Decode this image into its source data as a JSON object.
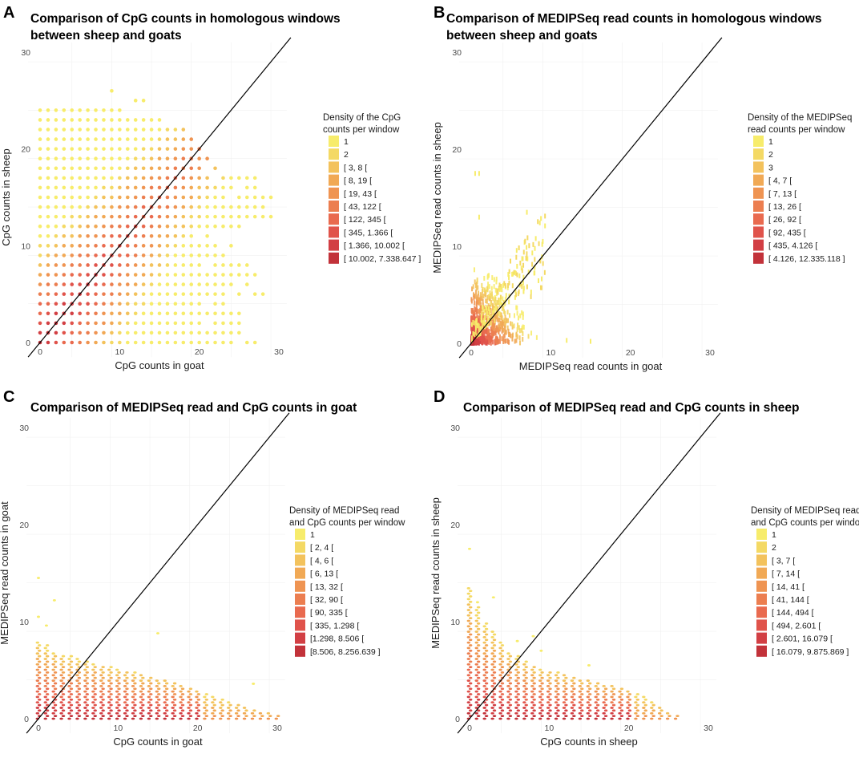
{
  "figure": "four-panel density scatter comparison",
  "chart_data": [
    {
      "panel": "A",
      "type": "scatter",
      "title": "Comparison of CpG counts in homologous windows between sheep and goats",
      "title_lines": [
        "Comparison of CpG counts in homologous windows",
        "between sheep and goats"
      ],
      "xlabel": "CpG counts in goat",
      "ylabel": "CpG counts in sheep",
      "xlim": [
        -1,
        31
      ],
      "ylim": [
        -1,
        31
      ],
      "xticks": [
        0,
        10,
        20,
        30
      ],
      "yticks": [
        0,
        10,
        20,
        30
      ],
      "reference_line": "y = x",
      "shape": "dots",
      "legend_title_lines": [
        "Density of the CpG",
        "counts per window"
      ],
      "legend": [
        "1",
        "2",
        "[ 3, 8 [",
        "[ 8, 19 [",
        "[ 19, 43 [",
        "[ 43, 122 [",
        "[ 122, 345 [",
        "[ 345, 1.366 [",
        "[ 1.366, 10.002 [",
        "[ 10.002, 7.338.647 ]"
      ],
      "max_x_by_y": [
        [
          0,
          27
        ],
        [
          1,
          25
        ],
        [
          2,
          25
        ],
        [
          3,
          26
        ],
        [
          4,
          23
        ],
        [
          5,
          28
        ],
        [
          6,
          26
        ],
        [
          7,
          27
        ],
        [
          8,
          26
        ],
        [
          9,
          23
        ],
        [
          10,
          24
        ],
        [
          11,
          22
        ],
        [
          12,
          25
        ],
        [
          13,
          30
        ],
        [
          14,
          28
        ],
        [
          15,
          29
        ],
        [
          16,
          27
        ],
        [
          17,
          27
        ],
        [
          18,
          22
        ],
        [
          19,
          21
        ],
        [
          20,
          20
        ],
        [
          21,
          19
        ],
        [
          22,
          18
        ],
        [
          23,
          15
        ],
        [
          24,
          10
        ],
        [
          25,
          13
        ],
        [
          26,
          9
        ]
      ],
      "min_x_by_y": [
        [
          0,
          0
        ],
        [
          1,
          0
        ],
        [
          2,
          0
        ],
        [
          3,
          0
        ],
        [
          4,
          0
        ],
        [
          5,
          0
        ],
        [
          6,
          0
        ],
        [
          7,
          0
        ],
        [
          8,
          0
        ],
        [
          9,
          0
        ],
        [
          10,
          0
        ],
        [
          11,
          0
        ],
        [
          12,
          0
        ],
        [
          13,
          0
        ],
        [
          14,
          0
        ],
        [
          15,
          0
        ],
        [
          16,
          0
        ],
        [
          17,
          0
        ],
        [
          18,
          0
        ],
        [
          19,
          0
        ],
        [
          20,
          0
        ],
        [
          21,
          0
        ],
        [
          22,
          0
        ],
        [
          23,
          0
        ],
        [
          24,
          0
        ],
        [
          25,
          12
        ],
        [
          26,
          9
        ]
      ]
    },
    {
      "panel": "B",
      "type": "scatter",
      "title": "Comparison of MEDIPSeq read counts in homologous windows between sheep and goats",
      "title_lines": [
        "Comparison of MEDIPSeq read counts in homologous windows",
        "between sheep and goats"
      ],
      "xlabel": "MEDIPSeq read counts in goat",
      "ylabel": "MEDIPSeq read counts in sheep",
      "xlim": [
        -1,
        31
      ],
      "ylim": [
        -1,
        31
      ],
      "xticks": [
        0,
        10,
        20,
        30
      ],
      "yticks": [
        0,
        10,
        20,
        30
      ],
      "reference_line": "y = x",
      "shape": "dense-cloud",
      "cloud_max": 7,
      "cloud_tail": 13.5,
      "outliers": [
        [
          0.5,
          17.5
        ],
        [
          1,
          17.5
        ],
        [
          1,
          13
        ],
        [
          12,
          0.3
        ],
        [
          15,
          0.2
        ],
        [
          9,
          10.5
        ],
        [
          7,
          13.5
        ]
      ],
      "legend_title_lines": [
        "Density of the MEDIPSeq",
        "read counts per window"
      ],
      "legend": [
        "1",
        "2",
        "3",
        "[ 4, 7 [",
        "[ 7, 13 [",
        "[ 13, 26 [",
        "[ 26, 92 [",
        "[ 92, 435 [",
        "[ 435, 4.126 [",
        "[ 4.126, 12.335.118 ]"
      ]
    },
    {
      "panel": "C",
      "type": "scatter",
      "title": "Comparison of MEDIPSeq read and CpG counts in goat",
      "title_lines": [
        "Comparison of MEDIPSeq read and CpG counts in goat"
      ],
      "xlabel": "CpG counts in goat",
      "ylabel": "MEDIPSeq read counts in goat",
      "xlim": [
        -1,
        31
      ],
      "ylim": [
        -1,
        31
      ],
      "xticks": [
        0,
        10,
        20,
        30
      ],
      "yticks": [
        0,
        10,
        20,
        30
      ],
      "reference_line": "y = x",
      "shape": "columns",
      "column_tops": [
        [
          0,
          8
        ],
        [
          1,
          7.6
        ],
        [
          2,
          7
        ],
        [
          3,
          6.7
        ],
        [
          4,
          6.5
        ],
        [
          5,
          6.2
        ],
        [
          6,
          6
        ],
        [
          7,
          5.8
        ],
        [
          8,
          5.6
        ],
        [
          9,
          5.4
        ],
        [
          10,
          5.2
        ],
        [
          11,
          5
        ],
        [
          12,
          4.8
        ],
        [
          13,
          4.6
        ],
        [
          14,
          4.4
        ],
        [
          15,
          4.2
        ],
        [
          16,
          4
        ],
        [
          17,
          3.8
        ],
        [
          18,
          3.5
        ],
        [
          19,
          3.2
        ],
        [
          20,
          3
        ],
        [
          21,
          2.7
        ],
        [
          22,
          2.4
        ],
        [
          23,
          2.1
        ],
        [
          24,
          1.8
        ],
        [
          25,
          1.5
        ],
        [
          26,
          1.2
        ],
        [
          27,
          1
        ],
        [
          28,
          0.8
        ],
        [
          29,
          0.6
        ],
        [
          30,
          0.5
        ]
      ],
      "outliers": [
        [
          0,
          14.5
        ],
        [
          2,
          12.2
        ],
        [
          0,
          10.5
        ],
        [
          1,
          9.6
        ],
        [
          15,
          8.8
        ],
        [
          27,
          3.6
        ]
      ],
      "legend_title_lines": [
        "Density of MEDIPSeq read",
        "and CpG counts per window"
      ],
      "legend": [
        "1",
        "[ 2, 4 [",
        "[ 4, 6 [",
        "[ 6, 13 [",
        "[ 13, 32 [",
        "[ 32, 90 [",
        "[ 90, 335 [",
        "[ 335, 1.298 [",
        "[1.298, 8.506 [",
        "[8.506, 8.256.639 ]"
      ]
    },
    {
      "panel": "D",
      "type": "scatter",
      "title": "Comparison of MEDIPSeq read and CpG counts in sheep",
      "title_lines": [
        "Comparison of MEDIPSeq read and CpG counts in sheep"
      ],
      "xlabel": "CpG counts in sheep",
      "ylabel": "MEDIPSeq read counts in sheep",
      "xlim": [
        -1,
        31
      ],
      "ylim": [
        -1,
        31
      ],
      "xticks": [
        0,
        10,
        20,
        30
      ],
      "yticks": [
        0,
        10,
        20,
        30
      ],
      "reference_line": "y = x",
      "shape": "columns",
      "column_tops": [
        [
          0,
          13.5
        ],
        [
          1,
          11.5
        ],
        [
          2,
          10
        ],
        [
          3,
          9
        ],
        [
          4,
          8
        ],
        [
          5,
          7
        ],
        [
          6,
          6.5
        ],
        [
          7,
          6
        ],
        [
          8,
          5.6
        ],
        [
          9,
          5.2
        ],
        [
          10,
          5
        ],
        [
          11,
          4.8
        ],
        [
          12,
          4.6
        ],
        [
          13,
          4.4
        ],
        [
          14,
          4.2
        ],
        [
          15,
          4
        ],
        [
          16,
          3.8
        ],
        [
          17,
          3.6
        ],
        [
          18,
          3.4
        ],
        [
          19,
          3.2
        ],
        [
          20,
          3
        ],
        [
          21,
          2.7
        ],
        [
          22,
          2.3
        ],
        [
          23,
          1.8
        ],
        [
          24,
          1.2
        ],
        [
          25,
          0.6
        ],
        [
          26,
          0.3
        ]
      ],
      "outliers": [
        [
          0,
          17.5
        ],
        [
          3,
          12.5
        ],
        [
          1,
          12
        ],
        [
          8,
          8.5
        ],
        [
          6,
          8
        ],
        [
          9,
          7
        ],
        [
          15,
          5.5
        ]
      ],
      "legend_title_lines": [
        "Density of MEDIPSeq read",
        "and CpG counts per window"
      ],
      "legend": [
        "1",
        "2",
        "[ 3, 7 [",
        "[ 7, 14 [",
        "[ 14, 41 [",
        "[ 41, 144 [",
        "[ 144, 494 [",
        "[ 494, 2.601 [",
        "[ 2.601, 16.079 [",
        "[ 16.079, 9.875.869 ]"
      ]
    }
  ],
  "palette": [
    "#f7ec6b",
    "#f4d964",
    "#f3c25c",
    "#f1a955",
    "#ef9452",
    "#ec7e50",
    "#e96a4f",
    "#e0534b",
    "#d23f44",
    "#c2323a"
  ]
}
